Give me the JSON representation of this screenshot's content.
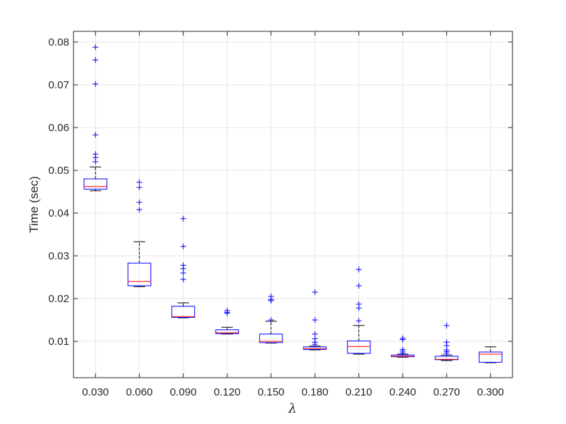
{
  "chart_data": {
    "type": "boxplot",
    "title": "",
    "xlabel": "λ",
    "ylabel": "Time (sec)",
    "ylim": [
      0.0015,
      0.0825
    ],
    "yticks": [
      "0.01",
      "0.02",
      "0.03",
      "0.04",
      "0.05",
      "0.06",
      "0.07",
      "0.08"
    ],
    "ytick_values": [
      0.01,
      0.02,
      0.03,
      0.04,
      0.05,
      0.06,
      0.07,
      0.08
    ],
    "grid": true,
    "colors": {
      "box": "#0000ff",
      "median": "#ff0000",
      "whisker": "#000000",
      "outlier": "#0000ff",
      "grid": "#e6e6e6",
      "axes": "#262626"
    },
    "categories": [
      "0.030",
      "0.060",
      "0.090",
      "0.120",
      "0.150",
      "0.180",
      "0.210",
      "0.240",
      "0.270",
      "0.300"
    ],
    "boxes": [
      {
        "label": "0.030",
        "whisker_low": 0.0452,
        "q1": 0.0456,
        "median": 0.0462,
        "q3": 0.048,
        "whisker_high": 0.0508,
        "outliers": [
          0.052,
          0.053,
          0.0538,
          0.0583,
          0.0702,
          0.0758,
          0.0788
        ]
      },
      {
        "label": "0.060",
        "whisker_low": 0.0228,
        "q1": 0.023,
        "median": 0.024,
        "q3": 0.0283,
        "whisker_high": 0.0333,
        "outliers": [
          0.0408,
          0.0425,
          0.046,
          0.0472
        ]
      },
      {
        "label": "0.090",
        "whisker_low": 0.0155,
        "q1": 0.0156,
        "median": 0.0158,
        "q3": 0.0182,
        "whisker_high": 0.019,
        "outliers": [
          0.0245,
          0.026,
          0.027,
          0.0278,
          0.0322,
          0.0387
        ]
      },
      {
        "label": "0.120",
        "whisker_low": 0.0117,
        "q1": 0.0118,
        "median": 0.012,
        "q3": 0.0127,
        "whisker_high": 0.0133,
        "outliers": [
          0.0166,
          0.0168,
          0.0172
        ]
      },
      {
        "label": "0.150",
        "whisker_low": 0.0096,
        "q1": 0.0097,
        "median": 0.01,
        "q3": 0.0117,
        "whisker_high": 0.0147,
        "outliers": [
          0.015,
          0.0195,
          0.0198,
          0.0205
        ]
      },
      {
        "label": "0.180",
        "whisker_low": 0.008,
        "q1": 0.0081,
        "median": 0.0083,
        "q3": 0.0087,
        "whisker_high": 0.0089,
        "outliers": [
          0.0093,
          0.0098,
          0.0106,
          0.0117,
          0.015,
          0.0215
        ]
      },
      {
        "label": "0.210",
        "whisker_low": 0.007,
        "q1": 0.0072,
        "median": 0.0088,
        "q3": 0.0101,
        "whisker_high": 0.0137,
        "outliers": [
          0.0148,
          0.0178,
          0.0187,
          0.023,
          0.0268
        ]
      },
      {
        "label": "0.240",
        "whisker_low": 0.0063,
        "q1": 0.0064,
        "median": 0.0065,
        "q3": 0.0068,
        "whisker_high": 0.007,
        "outliers": [
          0.0073,
          0.0077,
          0.0081,
          0.0104,
          0.0107
        ]
      },
      {
        "label": "0.270",
        "whisker_low": 0.0055,
        "q1": 0.0057,
        "median": 0.0058,
        "q3": 0.0065,
        "whisker_high": 0.0068,
        "outliers": [
          0.0072,
          0.0076,
          0.008,
          0.009,
          0.0098,
          0.0137
        ]
      },
      {
        "label": "0.300",
        "whisker_low": 0.005,
        "q1": 0.0051,
        "median": 0.007,
        "q3": 0.0075,
        "whisker_high": 0.0087,
        "outliers": []
      }
    ]
  }
}
